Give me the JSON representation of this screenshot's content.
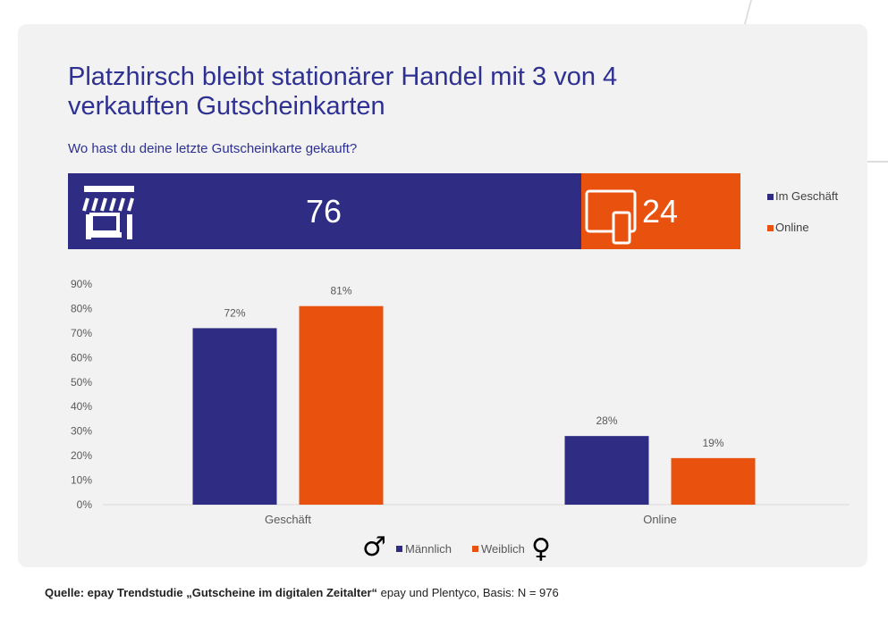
{
  "title_lines": [
    "Platzhirsch bleibt stationärer Handel mit 3 von 4",
    "verkauften Gutscheinkarten"
  ],
  "subtitle": "Wo hast du deine letzte Gutscheinkarte gekauft?",
  "colors": {
    "navy": "#2e2d83",
    "orange": "#e8520e",
    "title": "#2e3192"
  },
  "stacked": {
    "icons": [
      "storefront-icon",
      "devices-icon"
    ],
    "series": [
      {
        "name": "Im Geschäft",
        "value": 76,
        "label": "76"
      },
      {
        "name": "Online",
        "value": 24,
        "label": "24"
      }
    ]
  },
  "chart_data": {
    "type": "bar",
    "categories": [
      "Geschäft",
      "Online"
    ],
    "series": [
      {
        "name": "Männlich",
        "values": [
          72,
          28
        ],
        "labels": [
          "72%",
          "28%"
        ]
      },
      {
        "name": "Weiblich",
        "values": [
          81,
          19
        ],
        "labels": [
          "81%",
          "19%"
        ]
      }
    ],
    "ylim": [
      0,
      90
    ],
    "yticks": [
      "0%",
      "10%",
      "20%",
      "30%",
      "40%",
      "50%",
      "60%",
      "70%",
      "80%",
      "90%"
    ],
    "legend": "bottom",
    "legend_icons": [
      "male-symbol-icon",
      "female-symbol-icon"
    ],
    "grid": false
  },
  "source": {
    "bold": "Quelle: epay Trendstudie „Gutscheine im digitalen Zeitalter“",
    "rest": " epay und Plentyco, Basis: N = 976"
  }
}
